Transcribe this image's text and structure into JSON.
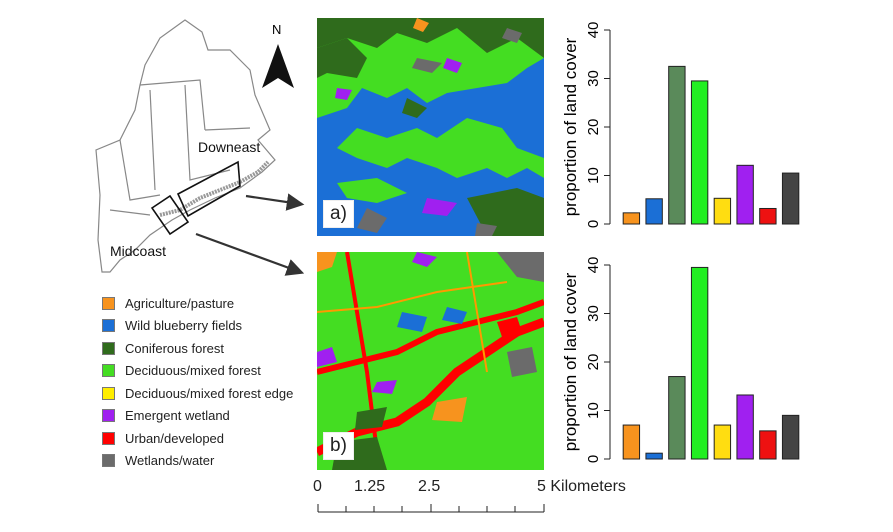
{
  "compass": {
    "letter": "N"
  },
  "locator_map": {
    "label_downeast": "Downeast",
    "label_midcoast": "Midcoast"
  },
  "panels": [
    {
      "label": "a)"
    },
    {
      "label": "b)"
    }
  ],
  "legend": [
    {
      "label": "Agriculture/pasture",
      "color": "#f7931e"
    },
    {
      "label": "Wild blueberry fields",
      "color": "#1b6fd6"
    },
    {
      "label": "Coniferous forest",
      "color": "#2f6b1c"
    },
    {
      "label": "Deciduous/mixed forest",
      "color": "#44dd22"
    },
    {
      "label": "Deciduous/mixed forest edge",
      "color": "#ffee00"
    },
    {
      "label": "Emergent wetland",
      "color": "#a020f0"
    },
    {
      "label": "Urban/developed",
      "color": "#ff0000"
    },
    {
      "label": "Wetlands/water",
      "color": "#6b6b6b"
    }
  ],
  "scale_bar": {
    "labels": [
      "0",
      "1.25",
      "2.5",
      "5 Kilometers"
    ]
  },
  "chart_data": [
    {
      "type": "bar",
      "categories": [
        "Agriculture/pasture",
        "Wild blueberry fields",
        "Coniferous forest",
        "Deciduous/mixed forest",
        "Deciduous/mixed forest edge",
        "Emergent wetland",
        "Urban/developed",
        "Wetlands/water"
      ],
      "values": [
        2.3,
        5.2,
        32.5,
        29.5,
        5.3,
        12.1,
        3.2,
        10.5
      ],
      "colors": [
        "#f7931e",
        "#1b6fd6",
        "#5a8a5a",
        "#22ee22",
        "#ffdd11",
        "#a020f0",
        "#ee1111",
        "#444444"
      ],
      "ylabel": "proportion of land cover",
      "ylim": [
        0,
        40
      ],
      "yticks": [
        0,
        10,
        20,
        30,
        40
      ]
    },
    {
      "type": "bar",
      "categories": [
        "Agriculture/pasture",
        "Wild blueberry fields",
        "Coniferous forest",
        "Deciduous/mixed forest",
        "Deciduous/mixed forest edge",
        "Emergent wetland",
        "Urban/developed",
        "Wetlands/water"
      ],
      "values": [
        7.0,
        1.2,
        17.0,
        39.5,
        7.0,
        13.2,
        5.8,
        9.0
      ],
      "colors": [
        "#f7931e",
        "#1b6fd6",
        "#5a8a5a",
        "#22ee22",
        "#ffdd11",
        "#a020f0",
        "#ee1111",
        "#444444"
      ],
      "ylabel": "proportion of land cover",
      "ylim": [
        0,
        40
      ],
      "yticks": [
        0,
        10,
        20,
        30,
        40
      ]
    }
  ]
}
